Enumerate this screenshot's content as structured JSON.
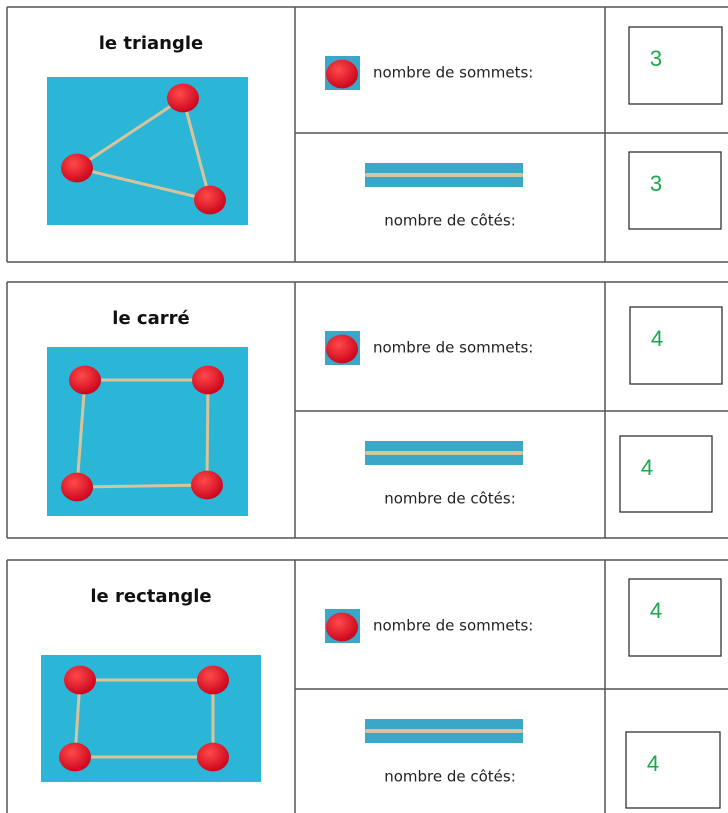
{
  "shapes": [
    {
      "name": "le triangle",
      "rows": [
        {
          "label": "nombre de sommets:",
          "answer": 3
        },
        {
          "label": "nombre de côtés:",
          "answer": 3
        }
      ]
    },
    {
      "name": "le carré",
      "rows": [
        {
          "label": "nombre de sommets:",
          "answer": 4
        },
        {
          "label": "nombre de côtés:",
          "answer": 4
        }
      ]
    },
    {
      "name": "le rectangle",
      "rows": [
        {
          "label": "nombre de sommets:",
          "answer": 4
        },
        {
          "label": "nombre de côtés:",
          "answer": 4
        }
      ]
    }
  ]
}
